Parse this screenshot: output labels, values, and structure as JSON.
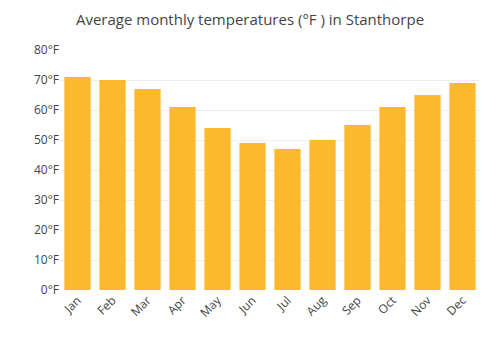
{
  "chart_data": {
    "type": "bar",
    "title": "Average monthly temperatures (°F ) in Stanthorpe",
    "categories": [
      "Jan",
      "Feb",
      "Mar",
      "Apr",
      "May",
      "Jun",
      "Jul",
      "Aug",
      "Sep",
      "Oct",
      "Nov",
      "Dec"
    ],
    "values": [
      71,
      70,
      67,
      61,
      54,
      49,
      47,
      50,
      55,
      61,
      65,
      69
    ],
    "color": "#FDB92E",
    "ylim": [
      0,
      80
    ],
    "yticks": [
      {
        "value": 0,
        "label": "0°F"
      },
      {
        "value": 10,
        "label": "10°F"
      },
      {
        "value": 20,
        "label": "20°F"
      },
      {
        "value": 30,
        "label": "30°F"
      },
      {
        "value": 40,
        "label": "40°F"
      },
      {
        "value": 50,
        "label": "50°F"
      },
      {
        "value": 60,
        "label": "60°F"
      },
      {
        "value": 70,
        "label": "70°F"
      },
      {
        "value": 80,
        "label": "80°F"
      }
    ],
    "grid": true
  }
}
